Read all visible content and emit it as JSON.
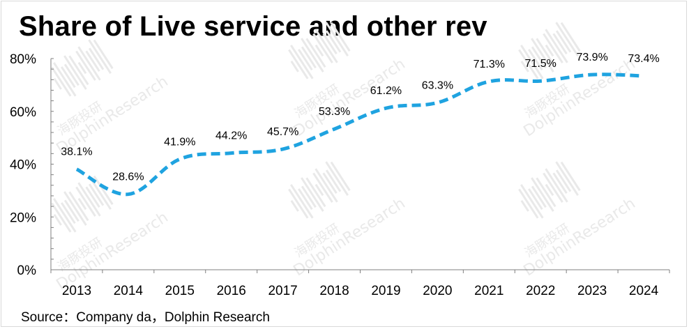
{
  "title": "Share of Live service and other rev",
  "source": "Source：Company da，Dolphin Research",
  "watermark": {
    "cn": "海豚投研",
    "en": "DolphinResearch"
  },
  "colors": {
    "line": "#1fa3e0",
    "axis": "#7f7f7f",
    "watermark": "#e9e9e9"
  },
  "chart_data": {
    "type": "line",
    "categories": [
      "2013",
      "2014",
      "2015",
      "2016",
      "2017",
      "2018",
      "2019",
      "2020",
      "2021",
      "2022",
      "2023",
      "2024"
    ],
    "series": [
      {
        "values": [
          38.1,
          28.6,
          41.9,
          44.2,
          45.7,
          53.3,
          61.2,
          63.3,
          71.3,
          71.5,
          73.9,
          73.4
        ],
        "labels": [
          "38.1%",
          "28.6%",
          "41.9%",
          "44.2%",
          "45.7%",
          "53.3%",
          "61.2%",
          "63.3%",
          "71.3%",
          "71.5%",
          "73.9%",
          "73.4%"
        ]
      }
    ],
    "yticks": [
      "0%",
      "20%",
      "40%",
      "60%",
      "80%"
    ],
    "ylim": [
      0,
      80
    ],
    "line_style": "dashed",
    "grid": false,
    "legend": "none"
  }
}
